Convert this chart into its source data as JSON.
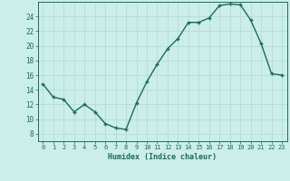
{
  "xlabel": "Humidex (Indice chaleur)",
  "ylabel": "",
  "x_values": [
    0,
    1,
    2,
    3,
    4,
    5,
    6,
    7,
    8,
    9,
    10,
    11,
    12,
    13,
    14,
    15,
    16,
    17,
    18,
    19,
    20,
    21,
    22,
    23
  ],
  "y_values": [
    14.8,
    13.0,
    12.7,
    11.0,
    12.0,
    11.0,
    9.4,
    8.8,
    8.6,
    12.2,
    15.1,
    17.5,
    19.6,
    21.0,
    23.2,
    23.2,
    23.8,
    25.5,
    25.7,
    25.6,
    23.5,
    20.3,
    16.2,
    16.0
  ],
  "line_color": "#1a6b5a",
  "marker": "+",
  "marker_size": 3.5,
  "bg_color": "#cceee8",
  "grid_color": "#b0d8d4",
  "axes_color": "#1a6b5a",
  "tick_label_color": "#1a6b5a",
  "xlabel_color": "#1a6b5a",
  "ylim": [
    7,
    26
  ],
  "yticks": [
    8,
    10,
    12,
    14,
    16,
    18,
    20,
    22,
    24
  ],
  "xticks": [
    0,
    1,
    2,
    3,
    4,
    5,
    6,
    7,
    8,
    9,
    10,
    11,
    12,
    13,
    14,
    15,
    16,
    17,
    18,
    19,
    20,
    21,
    22,
    23
  ],
  "xtick_labels": [
    "0",
    "1",
    "2",
    "3",
    "4",
    "5",
    "6",
    "7",
    "8",
    "9",
    "10",
    "11",
    "12",
    "13",
    "14",
    "15",
    "16",
    "17",
    "18",
    "19",
    "20",
    "21",
    "22",
    "23"
  ],
  "line_width": 1.0
}
